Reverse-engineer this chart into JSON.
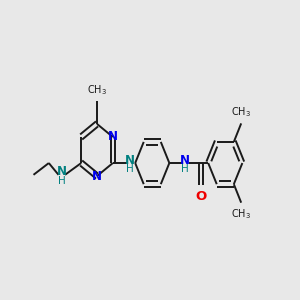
{
  "bg_color": "#e8e8e8",
  "bond_color": "#1a1a1a",
  "nitrogen_color": "#0000ee",
  "oxygen_color": "#ee0000",
  "nh_color": "#008080",
  "line_width": 1.4,
  "font_size": 8.5,
  "fig_size": [
    3.0,
    3.0
  ],
  "dpi": 100,
  "xlim": [
    0,
    10
  ],
  "ylim": [
    1,
    8
  ]
}
